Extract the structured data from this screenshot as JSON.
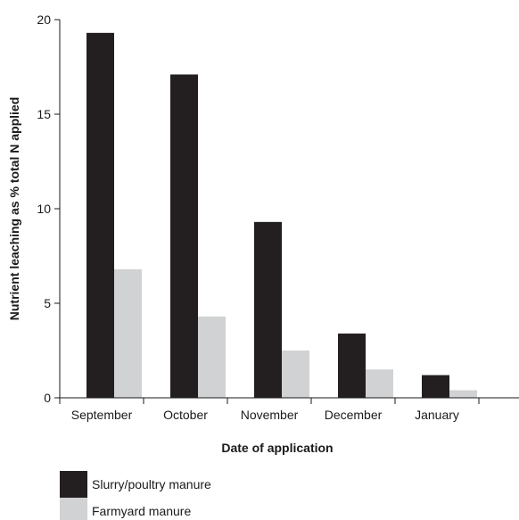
{
  "chart_data": {
    "type": "bar",
    "title": "",
    "xlabel": "Date of application",
    "ylabel": "Nutrient leaching as % total N applied",
    "categories": [
      "September",
      "October",
      "November",
      "December",
      "January"
    ],
    "series": [
      {
        "name": "Slurry/poultry manure",
        "color": "#231f20",
        "values": [
          19.3,
          17.1,
          9.3,
          3.4,
          1.2
        ]
      },
      {
        "name": "Farmyard manure",
        "color": "#d1d2d4",
        "values": [
          6.8,
          4.3,
          2.5,
          1.5,
          0.4
        ]
      }
    ],
    "ylim": [
      0,
      20
    ],
    "yticks": [
      0,
      5,
      10,
      15,
      20
    ],
    "grid": false,
    "legend_position": "bottom-left"
  }
}
